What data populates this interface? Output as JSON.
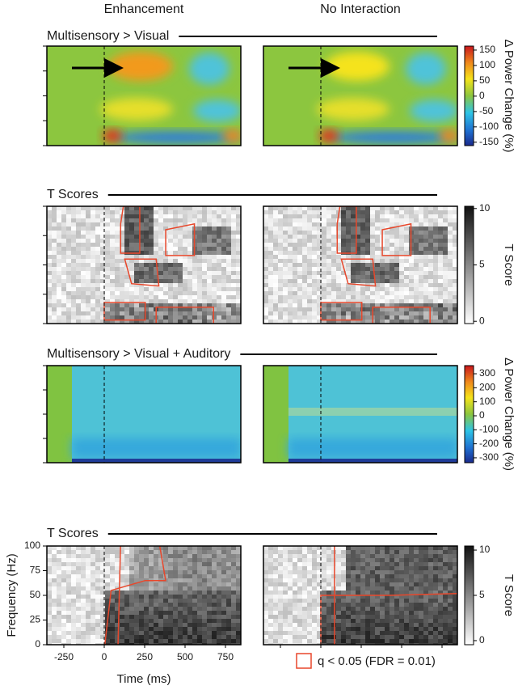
{
  "columns": [
    "Enhancement",
    "No Interaction"
  ],
  "rows": [
    {
      "title": "Multisensory > Visual",
      "colorbar": {
        "label": "Δ Power Change (%)",
        "lim": [
          -161,
          163
        ],
        "ticks": [
          150,
          100,
          50,
          0,
          -50,
          -100,
          -150
        ],
        "scale": "jet"
      }
    },
    {
      "title": "T Scores",
      "colorbar": {
        "label": "T Score",
        "lim": [
          -0.2,
          10.2
        ],
        "ticks": [
          10,
          5,
          0
        ],
        "scale": "grey"
      }
    },
    {
      "title": "Multisensory > Visual + Auditory",
      "colorbar": {
        "label": "Δ Power Change (%)",
        "lim": [
          -335,
          358
        ],
        "ticks": [
          300,
          200,
          100,
          0,
          -100,
          -200,
          -300
        ],
        "scale": "jet"
      }
    },
    {
      "title": "T Scores",
      "colorbar": {
        "label": "T Score",
        "lim": [
          -0.45,
          10.45
        ],
        "ticks": [
          10,
          5,
          0
        ],
        "scale": "grey"
      }
    }
  ],
  "x_axis": {
    "label": "Time (ms)",
    "lim": [
      -355,
      845
    ],
    "ticks": [
      -250,
      0,
      250,
      500,
      750
    ]
  },
  "y_axis": {
    "label": "Frequency (Hz)",
    "lim": [
      0,
      100
    ],
    "ticks": [
      0,
      25,
      50,
      75,
      100
    ]
  },
  "legend": "q < 0.05 (FDR = 0.01)"
}
